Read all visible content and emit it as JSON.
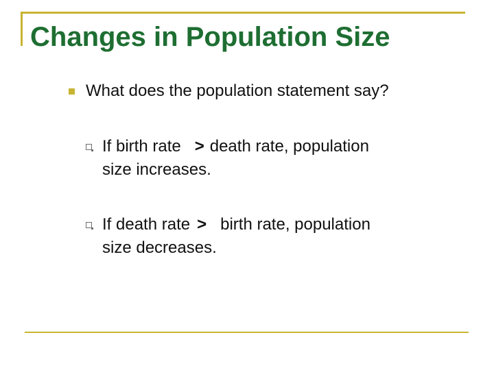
{
  "slide": {
    "title": "Changes in Population Size",
    "question": "What does the population statement say?",
    "points": [
      {
        "before": "If birth rate",
        "operator": ">",
        "after": "death rate, population",
        "continuation": "size increases."
      },
      {
        "before": "If death rate",
        "operator": ">",
        "after": "birth rate, population",
        "continuation": "size decreases."
      }
    ]
  },
  "colors": {
    "title": "#1e6e32",
    "accent": "#c8b432",
    "text": "#111111"
  }
}
